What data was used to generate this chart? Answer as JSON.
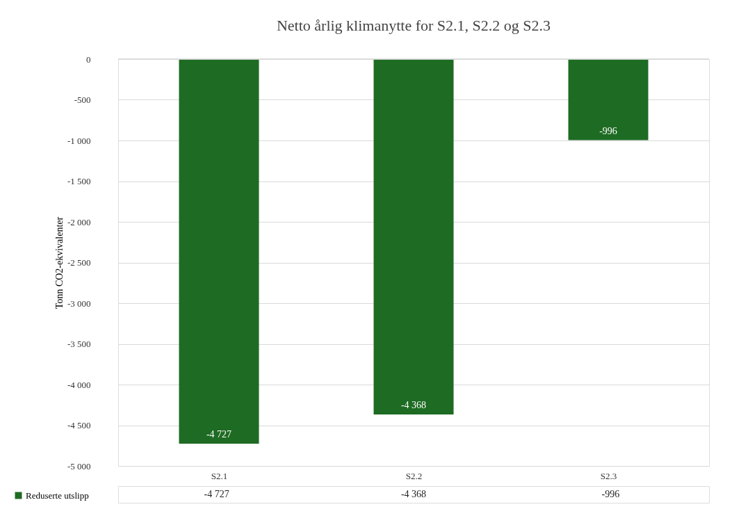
{
  "chart_data": {
    "type": "bar",
    "title": "Netto årlig klimanytte for S2.1,  S2.2 og S2.3",
    "ylabel": "Tonn CO2-ekvivalenter",
    "categories": [
      "S2.1",
      "S2.2",
      "S2.3"
    ],
    "series": [
      {
        "name": "Reduserte utslipp",
        "color": "#1e6b23",
        "values": [
          -4727,
          -4368,
          -996
        ],
        "value_labels": [
          "-4 727",
          "-4 368",
          "-996"
        ]
      }
    ],
    "ylim": [
      -5000,
      0
    ],
    "yticks": [
      0,
      -500,
      {
        "value": -1000,
        "label": "-1 000"
      },
      {
        "value": -1500,
        "label": "-1 500"
      },
      {
        "value": -2000,
        "label": "-2 000"
      },
      {
        "value": -2500,
        "label": "-2 500"
      },
      {
        "value": -3000,
        "label": "-3 000"
      },
      {
        "value": -3500,
        "label": "-3 500"
      },
      {
        "value": -4000,
        "label": "-4 000"
      },
      {
        "value": -4500,
        "label": "-4 500"
      },
      {
        "value": -5000,
        "label": "-5 000"
      }
    ],
    "grid": "y",
    "legend": "bottom left"
  }
}
